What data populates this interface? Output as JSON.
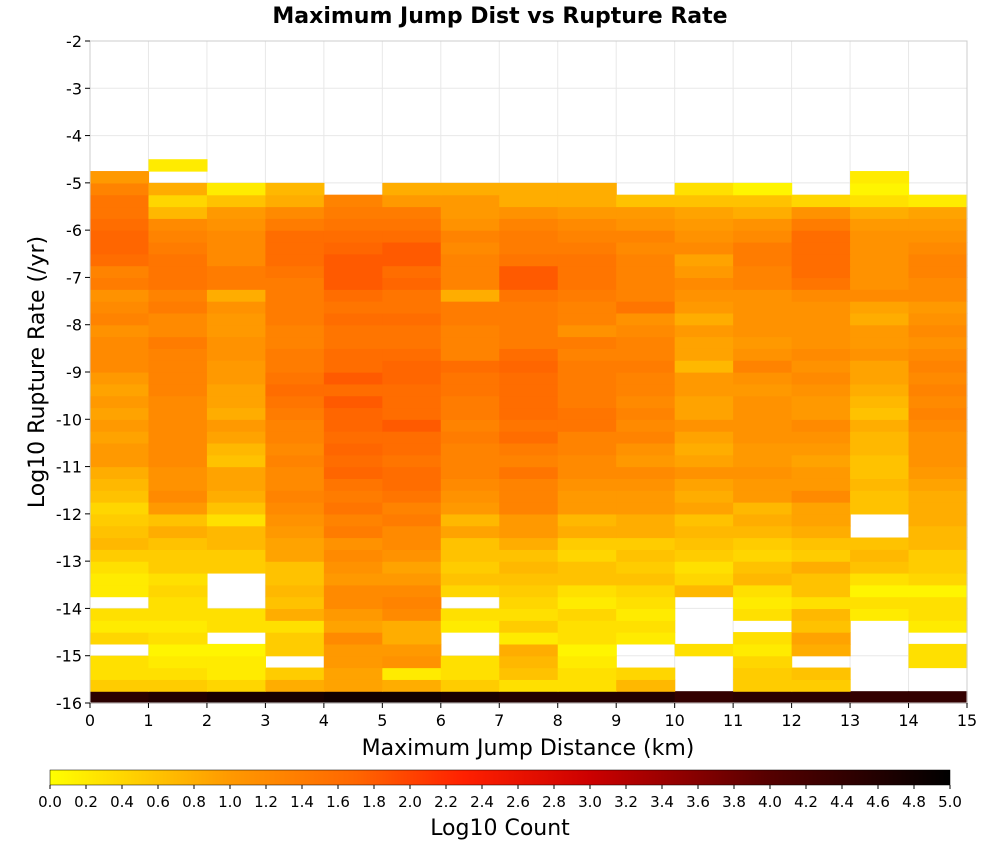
{
  "chart_data": {
    "type": "heatmap",
    "title": "Maximum Jump Dist vs Rupture Rate",
    "xlabel": "Maximum Jump Distance (km)",
    "ylabel": "Log10 Rupture Rate (/yr)",
    "colorbar_label": "Log10 Count",
    "xlim": [
      0,
      15
    ],
    "ylim": [
      -16,
      -2
    ],
    "x_ticks": [
      "0",
      "1",
      "2",
      "3",
      "4",
      "5",
      "6",
      "7",
      "8",
      "9",
      "10",
      "11",
      "12",
      "13",
      "14",
      "15"
    ],
    "y_ticks": [
      "-2",
      "-3",
      "-4",
      "-5",
      "-6",
      "-7",
      "-8",
      "-9",
      "-10",
      "-11",
      "-12",
      "-13",
      "-14",
      "-15",
      "-16"
    ],
    "colorbar_ticks": [
      "0.0",
      "0.2",
      "0.4",
      "0.6",
      "0.8",
      "1.0",
      "1.2",
      "1.4",
      "1.6",
      "1.8",
      "2.0",
      "2.2",
      "2.4",
      "2.6",
      "2.8",
      "3.0",
      "3.2",
      "3.4",
      "3.6",
      "3.8",
      "4.0",
      "4.2",
      "4.4",
      "4.6",
      "4.8",
      "5.0"
    ],
    "colorbar_range": [
      0,
      5
    ],
    "colormap": [
      "#ffff00",
      "#ff9900",
      "#ff6600",
      "#ff2000",
      "#cc0000",
      "#550000",
      "#000000"
    ],
    "x_bin_width": 1,
    "y_bin_height": 0.25,
    "y_bin_start": -16,
    "grid": true,
    "values_note": "log10 count per cell; rows from y=-16 upward in 0.25 steps; null = empty",
    "values": [
      [
        4.5,
        4.6,
        4.7,
        4.7,
        4.8,
        4.8,
        4.7,
        4.6,
        4.6,
        4.6,
        4.4,
        4.5,
        4.5,
        4.4,
        4.4
      ],
      [
        0.5,
        0.5,
        0.4,
        0.8,
        0.9,
        0.8,
        0.5,
        0.3,
        0.3,
        0.7,
        null,
        0.5,
        0.5,
        null,
        null
      ],
      [
        0.3,
        0.3,
        0.2,
        0.5,
        0.9,
        0.2,
        0.3,
        0.6,
        0.3,
        0.4,
        null,
        0.5,
        0.6,
        null,
        null
      ],
      [
        0.3,
        0.2,
        0.2,
        null,
        1.0,
        1.1,
        0.3,
        0.7,
        0.2,
        null,
        null,
        0.4,
        null,
        null,
        0.3
      ],
      [
        null,
        0.1,
        0.1,
        0.5,
        1.0,
        1.0,
        null,
        0.8,
        0.1,
        null,
        0.3,
        0.2,
        0.8,
        null,
        0.3
      ],
      [
        0.4,
        0.3,
        null,
        0.5,
        1.2,
        0.8,
        null,
        0.2,
        0.3,
        0.2,
        null,
        0.3,
        0.9,
        null,
        null
      ],
      [
        0.2,
        0.2,
        0.3,
        0.3,
        0.9,
        0.8,
        0.2,
        0.5,
        0.3,
        0.3,
        null,
        null,
        0.6,
        null,
        0.2
      ],
      [
        0.3,
        0.3,
        0.3,
        0.8,
        1.0,
        1.2,
        0.3,
        0.3,
        0.4,
        0.2,
        null,
        0.3,
        0.7,
        0.2,
        0.3
      ],
      [
        null,
        0.3,
        null,
        0.6,
        1.2,
        1.3,
        null,
        0.4,
        0.2,
        0.3,
        null,
        0.2,
        0.3,
        0.3,
        0.3
      ],
      [
        0.2,
        0.4,
        null,
        0.7,
        1.2,
        1.2,
        0.4,
        0.5,
        0.3,
        0.4,
        0.7,
        0.3,
        0.6,
        0.1,
        0.1
      ],
      [
        0.2,
        0.3,
        null,
        0.6,
        1.0,
        1.0,
        0.6,
        0.6,
        0.6,
        0.6,
        0.4,
        0.7,
        0.6,
        0.3,
        0.4
      ],
      [
        0.3,
        0.5,
        0.5,
        0.6,
        1.1,
        0.9,
        0.5,
        0.7,
        0.6,
        0.5,
        0.3,
        0.6,
        0.8,
        0.6,
        0.5
      ],
      [
        0.5,
        0.5,
        0.5,
        0.9,
        1.2,
        1.1,
        0.6,
        0.6,
        0.4,
        0.6,
        0.5,
        0.4,
        0.5,
        0.7,
        0.5
      ],
      [
        0.7,
        0.6,
        0.7,
        0.9,
        1.1,
        1.2,
        0.6,
        0.8,
        0.5,
        0.5,
        0.6,
        0.5,
        0.6,
        0.6,
        0.7
      ],
      [
        0.6,
        0.8,
        0.7,
        1.0,
        1.4,
        1.2,
        0.9,
        1.0,
        0.8,
        0.8,
        0.7,
        0.7,
        0.8,
        null,
        0.7
      ],
      [
        0.5,
        0.6,
        0.3,
        1.1,
        1.3,
        1.4,
        0.7,
        1.0,
        0.7,
        0.8,
        0.6,
        0.8,
        0.9,
        null,
        0.8
      ],
      [
        0.4,
        1.0,
        0.6,
        1.2,
        1.5,
        1.3,
        1.0,
        1.3,
        1.0,
        1.0,
        0.9,
        0.7,
        0.9,
        0.6,
        0.8
      ],
      [
        0.6,
        1.2,
        0.8,
        1.3,
        1.4,
        1.5,
        1.1,
        1.3,
        1.0,
        1.0,
        0.8,
        1.0,
        1.2,
        0.6,
        0.8
      ],
      [
        0.7,
        1.1,
        0.9,
        1.2,
        1.5,
        1.6,
        1.2,
        1.3,
        1.1,
        1.1,
        0.9,
        1.0,
        1.0,
        0.7,
        0.9
      ],
      [
        0.8,
        1.1,
        0.9,
        1.2,
        1.7,
        1.6,
        1.3,
        1.5,
        1.2,
        1.2,
        1.1,
        1.1,
        1.0,
        0.6,
        1.0
      ],
      [
        1.0,
        1.2,
        0.6,
        1.3,
        1.6,
        1.5,
        1.3,
        1.3,
        1.2,
        1.0,
        0.9,
        1.0,
        0.9,
        0.6,
        1.1
      ],
      [
        1.0,
        1.2,
        0.7,
        1.2,
        1.7,
        1.6,
        1.3,
        1.4,
        1.3,
        1.1,
        0.8,
        1.0,
        1.0,
        0.7,
        1.1
      ],
      [
        0.9,
        1.2,
        0.9,
        1.3,
        1.6,
        1.6,
        1.4,
        1.6,
        1.3,
        1.3,
        0.9,
        1.1,
        1.1,
        0.7,
        1.1
      ],
      [
        1.0,
        1.2,
        1.0,
        1.3,
        1.7,
        1.8,
        1.3,
        1.5,
        1.5,
        1.2,
        1.1,
        1.1,
        1.2,
        0.8,
        1.2
      ],
      [
        0.9,
        1.2,
        0.8,
        1.4,
        1.7,
        1.6,
        1.4,
        1.6,
        1.5,
        1.3,
        0.9,
        1.1,
        1.0,
        0.6,
        1.3
      ],
      [
        1.0,
        1.2,
        0.9,
        1.5,
        1.8,
        1.6,
        1.4,
        1.6,
        1.4,
        1.2,
        0.9,
        1.1,
        1.0,
        0.7,
        1.2
      ],
      [
        0.9,
        1.3,
        0.9,
        1.6,
        1.6,
        1.6,
        1.5,
        1.6,
        1.4,
        1.3,
        1.0,
        1.0,
        1.1,
        0.8,
        1.3
      ],
      [
        1.0,
        1.3,
        1.0,
        1.5,
        1.8,
        1.7,
        1.5,
        1.6,
        1.4,
        1.3,
        1.0,
        1.1,
        1.2,
        0.9,
        1.2
      ],
      [
        1.2,
        1.3,
        1.0,
        1.4,
        1.6,
        1.7,
        1.6,
        1.7,
        1.4,
        1.4,
        0.7,
        1.3,
        1.1,
        0.9,
        1.3
      ],
      [
        1.2,
        1.3,
        1.1,
        1.4,
        1.6,
        1.6,
        1.3,
        1.6,
        1.3,
        1.3,
        0.9,
        1.1,
        1.2,
        1.1,
        1.2
      ],
      [
        1.2,
        1.4,
        1.1,
        1.3,
        1.5,
        1.5,
        1.3,
        1.4,
        1.4,
        1.3,
        0.9,
        1.0,
        1.1,
        1.0,
        1.1
      ],
      [
        1.1,
        1.2,
        1.0,
        1.3,
        1.5,
        1.5,
        1.3,
        1.4,
        1.1,
        1.2,
        1.0,
        1.1,
        1.1,
        1.0,
        1.2
      ],
      [
        1.3,
        1.2,
        1.0,
        1.4,
        1.6,
        1.6,
        1.4,
        1.4,
        1.3,
        1.1,
        0.8,
        1.1,
        1.1,
        0.8,
        1.1
      ],
      [
        1.2,
        1.4,
        1.1,
        1.4,
        1.5,
        1.5,
        1.4,
        1.4,
        1.3,
        1.5,
        1.0,
        1.1,
        1.1,
        0.9,
        1.0
      ],
      [
        1.1,
        1.3,
        0.8,
        1.4,
        1.6,
        1.5,
        0.8,
        1.5,
        1.4,
        1.3,
        1.1,
        1.1,
        1.2,
        1.2,
        1.2
      ],
      [
        1.4,
        1.5,
        1.4,
        1.4,
        1.8,
        1.7,
        1.3,
        1.8,
        1.5,
        1.3,
        1.2,
        1.3,
        1.5,
        1.1,
        1.2
      ],
      [
        1.3,
        1.5,
        1.4,
        1.5,
        1.8,
        1.6,
        1.3,
        1.8,
        1.5,
        1.3,
        1.0,
        1.3,
        1.6,
        1.1,
        1.3
      ],
      [
        1.6,
        1.5,
        1.2,
        1.6,
        1.8,
        1.8,
        1.3,
        1.5,
        1.5,
        1.3,
        0.9,
        1.4,
        1.6,
        1.1,
        1.3
      ],
      [
        1.7,
        1.4,
        1.2,
        1.6,
        1.7,
        1.8,
        1.2,
        1.4,
        1.4,
        1.2,
        1.2,
        1.4,
        1.6,
        1.1,
        1.2
      ],
      [
        1.7,
        1.3,
        1.2,
        1.6,
        1.6,
        1.6,
        1.3,
        1.4,
        1.3,
        1.3,
        1.1,
        1.2,
        1.6,
        1.1,
        1.1
      ],
      [
        1.6,
        1.2,
        1.1,
        1.4,
        1.5,
        1.5,
        1.1,
        1.3,
        1.2,
        1.1,
        1.0,
        1.1,
        1.4,
        1.0,
        1.0
      ],
      [
        1.5,
        0.7,
        1.0,
        1.2,
        1.4,
        1.4,
        1.0,
        1.1,
        1.0,
        1.0,
        0.9,
        0.8,
        1.1,
        0.8,
        0.9
      ],
      [
        1.5,
        0.4,
        0.6,
        0.8,
        1.3,
        1.0,
        1.0,
        0.8,
        0.8,
        0.6,
        0.6,
        0.6,
        0.4,
        0.3,
        0.2
      ],
      [
        1.3,
        0.8,
        0.2,
        0.7,
        null,
        0.8,
        0.8,
        0.8,
        0.8,
        null,
        0.3,
        0.1,
        null,
        0.1,
        null
      ],
      [
        1.0,
        null,
        null,
        null,
        null,
        null,
        null,
        null,
        null,
        null,
        null,
        null,
        null,
        0.2,
        null
      ],
      [
        null,
        0.2,
        null,
        null,
        null,
        null,
        null,
        null,
        null,
        null,
        null,
        null,
        null,
        null,
        null
      ]
    ]
  }
}
